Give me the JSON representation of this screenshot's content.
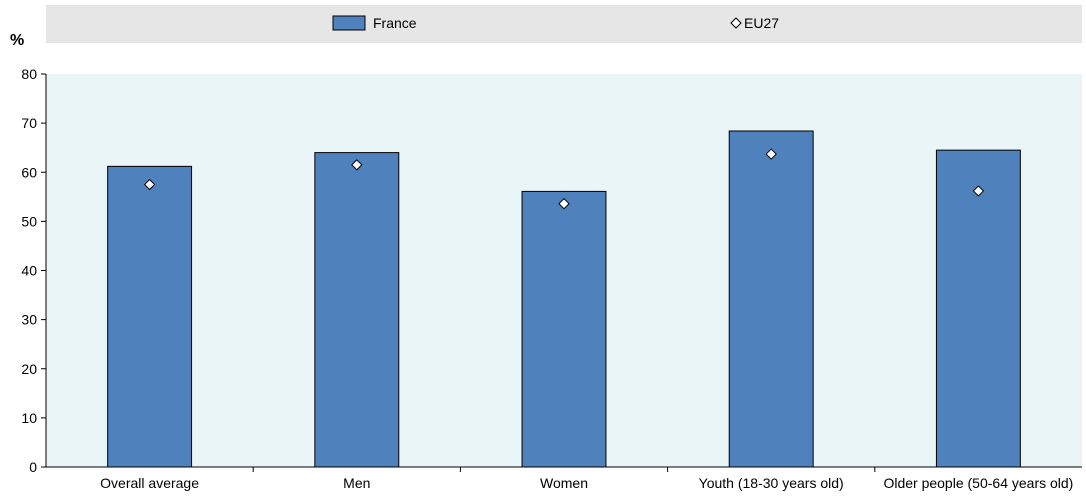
{
  "chart_data": {
    "type": "bar",
    "unit_label": "%",
    "categories": [
      "Overall average",
      "Men",
      "Women",
      "Youth (18-30 years old)",
      "Older people (50-64 years old)"
    ],
    "series": [
      {
        "name": "France",
        "kind": "bar",
        "values": [
          61.2,
          64.0,
          56.1,
          68.4,
          64.5
        ],
        "color": "#4F81BD"
      },
      {
        "name": "EU27",
        "kind": "marker",
        "marker": "diamond",
        "values": [
          57.5,
          61.5,
          53.6,
          63.7,
          56.2
        ],
        "color": "#ffffff"
      }
    ],
    "ylim": [
      0,
      80
    ],
    "yticks": [
      "0",
      "10",
      "20",
      "30",
      "40",
      "50",
      "60",
      "70",
      "80"
    ],
    "legend_position": "top",
    "grid": false,
    "plot_background": "#E9F5F7",
    "legend_background": "#E6E6E6"
  }
}
